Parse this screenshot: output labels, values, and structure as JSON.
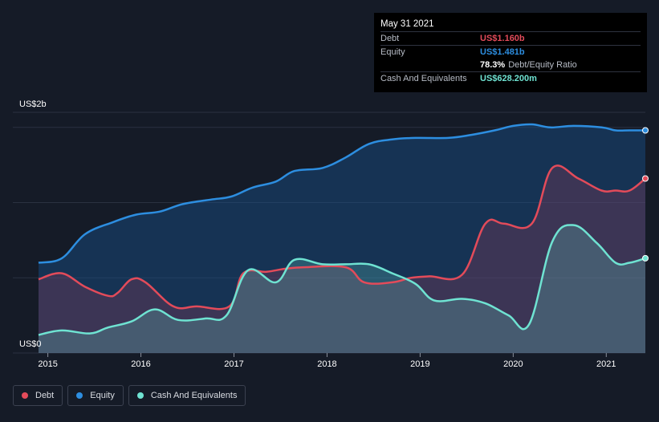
{
  "tooltip": {
    "date": "May 31 2021",
    "debt_label": "Debt",
    "debt_value": "US$1.160b",
    "equity_label": "Equity",
    "equity_value": "US$1.481b",
    "ratio_value": "78.3%",
    "ratio_label": "Debt/Equity Ratio",
    "cash_label": "Cash And Equivalents",
    "cash_value": "US$628.200m"
  },
  "legend": {
    "debt": "Debt",
    "equity": "Equity",
    "cash": "Cash And Equivalents"
  },
  "colors": {
    "background": "#151b27",
    "debt": "#e34b5a",
    "equity": "#2d8ee0",
    "cash": "#6fe3d2"
  },
  "chart_data": {
    "type": "area",
    "ylabel_top": "US$2b",
    "ylabel_bottom": "US$0",
    "ylim": [
      0,
      1.6
    ],
    "xlim": [
      2014.9,
      2021.42
    ],
    "x_ticks": [
      {
        "label": "2015",
        "value": 2015
      },
      {
        "label": "2016",
        "value": 2016
      },
      {
        "label": "2017",
        "value": 2017
      },
      {
        "label": "2018",
        "value": 2018
      },
      {
        "label": "2019",
        "value": 2019
      },
      {
        "label": "2020",
        "value": 2020
      },
      {
        "label": "2021",
        "value": 2021
      }
    ],
    "series": [
      {
        "name": "Equity",
        "color": "#2d8ee0",
        "points": [
          [
            2014.9,
            0.6
          ],
          [
            2015.15,
            0.63
          ],
          [
            2015.4,
            0.79
          ],
          [
            2015.7,
            0.87
          ],
          [
            2015.95,
            0.92
          ],
          [
            2016.2,
            0.94
          ],
          [
            2016.45,
            0.99
          ],
          [
            2016.75,
            1.02
          ],
          [
            2016.97,
            1.04
          ],
          [
            2017.2,
            1.1
          ],
          [
            2017.45,
            1.14
          ],
          [
            2017.65,
            1.21
          ],
          [
            2017.95,
            1.23
          ],
          [
            2018.2,
            1.3
          ],
          [
            2018.45,
            1.39
          ],
          [
            2018.7,
            1.42
          ],
          [
            2018.95,
            1.43
          ],
          [
            2019.3,
            1.43
          ],
          [
            2019.55,
            1.45
          ],
          [
            2019.8,
            1.48
          ],
          [
            2020.0,
            1.51
          ],
          [
            2020.2,
            1.52
          ],
          [
            2020.4,
            1.5
          ],
          [
            2020.65,
            1.51
          ],
          [
            2020.95,
            1.5
          ],
          [
            2021.1,
            1.48
          ],
          [
            2021.25,
            1.48
          ],
          [
            2021.42,
            1.48
          ]
        ]
      },
      {
        "name": "Debt",
        "color": "#e34b5a",
        "points": [
          [
            2014.9,
            0.49
          ],
          [
            2015.15,
            0.53
          ],
          [
            2015.4,
            0.44
          ],
          [
            2015.65,
            0.38
          ],
          [
            2015.75,
            0.4
          ],
          [
            2015.9,
            0.49
          ],
          [
            2016.05,
            0.47
          ],
          [
            2016.35,
            0.31
          ],
          [
            2016.6,
            0.31
          ],
          [
            2016.95,
            0.31
          ],
          [
            2017.1,
            0.53
          ],
          [
            2017.35,
            0.54
          ],
          [
            2017.55,
            0.56
          ],
          [
            2017.75,
            0.57
          ],
          [
            2018.2,
            0.57
          ],
          [
            2018.4,
            0.47
          ],
          [
            2018.7,
            0.47
          ],
          [
            2018.9,
            0.5
          ],
          [
            2019.1,
            0.51
          ],
          [
            2019.45,
            0.52
          ],
          [
            2019.7,
            0.86
          ],
          [
            2019.9,
            0.86
          ],
          [
            2020.2,
            0.86
          ],
          [
            2020.42,
            1.23
          ],
          [
            2020.7,
            1.16
          ],
          [
            2020.95,
            1.08
          ],
          [
            2021.1,
            1.08
          ],
          [
            2021.25,
            1.08
          ],
          [
            2021.42,
            1.16
          ]
        ]
      },
      {
        "name": "Cash And Equivalents",
        "color": "#6fe3d2",
        "points": [
          [
            2014.9,
            0.12
          ],
          [
            2015.15,
            0.15
          ],
          [
            2015.45,
            0.13
          ],
          [
            2015.65,
            0.17
          ],
          [
            2015.9,
            0.21
          ],
          [
            2016.15,
            0.29
          ],
          [
            2016.4,
            0.22
          ],
          [
            2016.7,
            0.23
          ],
          [
            2016.92,
            0.25
          ],
          [
            2017.15,
            0.55
          ],
          [
            2017.45,
            0.47
          ],
          [
            2017.65,
            0.62
          ],
          [
            2017.95,
            0.59
          ],
          [
            2018.2,
            0.59
          ],
          [
            2018.45,
            0.59
          ],
          [
            2018.7,
            0.53
          ],
          [
            2018.95,
            0.46
          ],
          [
            2019.15,
            0.35
          ],
          [
            2019.45,
            0.36
          ],
          [
            2019.7,
            0.33
          ],
          [
            2019.95,
            0.25
          ],
          [
            2020.17,
            0.19
          ],
          [
            2020.42,
            0.74
          ],
          [
            2020.65,
            0.85
          ],
          [
            2020.9,
            0.73
          ],
          [
            2021.1,
            0.6
          ],
          [
            2021.25,
            0.6
          ],
          [
            2021.42,
            0.63
          ]
        ]
      }
    ]
  }
}
